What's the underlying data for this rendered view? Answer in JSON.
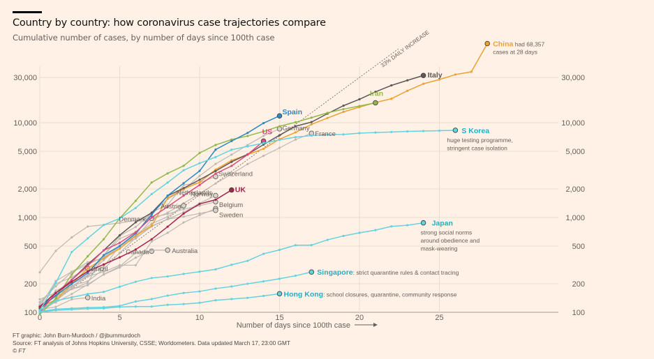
{
  "header": {
    "title": "Country by country: how coronavirus case trajectories compare",
    "subtitle": "Cumulative number of cases, by number of days since 100th case"
  },
  "footer": {
    "credit": "FT graphic: John Burn-Murdoch / @jburnmurdoch",
    "source": "Source: FT analysis of Johns Hopkins University, CSSE; Worldometers. Data updated March 17, 23:00 GMT",
    "copyright": "© FT"
  },
  "colors": {
    "background": "#fff1e5",
    "grid": "#e9ddd2",
    "axis_text": "#66605c",
    "china": "#eca133",
    "italy": "#5e5857",
    "iran": "#93b84a",
    "spain": "#2d88c4",
    "us": "#dc4a7f",
    "uk": "#a6244e",
    "asia_blue": "#62d3e0",
    "asia_label": "#1fb1c3",
    "gray": "#bdb8b4",
    "gray_label": "#66605c"
  },
  "chart_data": {
    "type": "line",
    "title": "Country by country: how coronavirus case trajectories compare",
    "subtitle": "Cumulative number of cases, by number of days since 100th case",
    "xlabel": "Number of days since 100th case",
    "ylabel": "",
    "yscale": "log",
    "xlim": [
      0,
      28
    ],
    "ylim": [
      100,
      70000
    ],
    "xticks": [
      0,
      5,
      10,
      15,
      20,
      25
    ],
    "xtick_labels": [
      "0",
      "5",
      "10",
      "15",
      "20",
      "25"
    ],
    "yticks": [
      100,
      200,
      500,
      1000,
      2000,
      5000,
      10000,
      30000
    ],
    "ytick_labels": [
      "100",
      "200",
      "500",
      "1,000",
      "2,000",
      "5,000",
      "10,000",
      "30,000"
    ],
    "grid": true,
    "reference_line": {
      "label": "33% DAILY INCREASE",
      "start": 100,
      "daily_growth": 0.33
    },
    "series": [
      {
        "name": "China",
        "label": "China",
        "note": "had 68,357 cases at 28 days",
        "color_key": "china",
        "highlight": true,
        "values": [
          114,
          135,
          200,
          290,
          370,
          470,
          640,
          820,
          1600,
          2000,
          2350,
          3200,
          4000,
          4600,
          5300,
          6700,
          7900,
          9600,
          11200,
          13000,
          14600,
          16300,
          17900,
          21700,
          25700,
          28500,
          32200,
          34400,
          68357
        ]
      },
      {
        "name": "Italy",
        "label": "Italy",
        "color_key": "italy",
        "highlight": true,
        "values": [
          110,
          150,
          220,
          320,
          450,
          650,
          890,
          1120,
          1690,
          2040,
          2500,
          3090,
          3860,
          4640,
          5880,
          7380,
          9170,
          10150,
          12460,
          15110,
          17660,
          21150,
          24740,
          27980,
          31500
        ]
      },
      {
        "name": "Iran",
        "label": "Iran",
        "color_key": "iran",
        "highlight": true,
        "values": [
          95,
          140,
          250,
          390,
          590,
          980,
          1500,
          2340,
          2920,
          3510,
          4790,
          5820,
          6630,
          7240,
          8080,
          9170,
          10100,
          11300,
          12700,
          13900,
          14990,
          16200
        ]
      },
      {
        "name": "Spain",
        "label": "Spain",
        "color_key": "spain",
        "highlight": true,
        "values": [
          114,
          150,
          200,
          260,
          400,
          500,
          680,
          1070,
          1700,
          2300,
          3100,
          5200,
          6400,
          7800,
          9900,
          11800
        ]
      },
      {
        "name": "US",
        "label": "US",
        "color_key": "us",
        "highlight": true,
        "values": [
          100,
          160,
          220,
          310,
          450,
          540,
          700,
          1000,
          1300,
          1700,
          2200,
          2900,
          3500,
          4600,
          6400
        ]
      },
      {
        "name": "UK",
        "label": "UK",
        "color_key": "uk",
        "highlight": true,
        "values": [
          115,
          160,
          210,
          270,
          320,
          380,
          460,
          590,
          800,
          1100,
          1390,
          1540,
          1950
        ]
      },
      {
        "name": "S Korea",
        "label": "S Korea",
        "note": "huge testing programme, stringent case isolation",
        "color_key": "asia_blue",
        "highlight": true,
        "values": [
          104,
          204,
          433,
          602,
          833,
          977,
          1261,
          1766,
          2337,
          3150,
          3736,
          4335,
          5186,
          5621,
          6088,
          6593,
          7041,
          7313,
          7478,
          7513,
          7755,
          7869,
          7979,
          8086,
          8162,
          8236,
          8320
        ]
      },
      {
        "name": "Japan",
        "label": "Japan",
        "note": "strong social norms around obedience and mask-wearing",
        "color_key": "asia_blue",
        "highlight": true,
        "values": [
          105,
          132,
          144,
          156,
          164,
          186,
          210,
          230,
          239,
          254,
          268,
          284,
          317,
          349,
          414,
          455,
          510,
          511,
          581,
          639,
          689,
          736,
          806,
          829,
          878
        ]
      },
      {
        "name": "Singapore",
        "label": "Singapore",
        "note": "strict quarantine rules & contact tracing",
        "color_key": "asia_blue",
        "highlight": true,
        "values": [
          102,
          108,
          110,
          112,
          113,
          117,
          130,
          138,
          150,
          160,
          166,
          178,
          187,
          200,
          212,
          226,
          243,
          266
        ]
      },
      {
        "name": "Hong Kong",
        "label": "Hong Kong",
        "note": "school closures, quarantine, community response",
        "color_key": "asia_blue",
        "highlight": true,
        "values": [
          100,
          105,
          107,
          109,
          110,
          114,
          115,
          115,
          120,
          122,
          126,
          134,
          138,
          142,
          149,
          157
        ]
      },
      {
        "name": "Germany",
        "label": "Germany",
        "color_key": "gray",
        "highlight": false,
        "values": [
          117,
          150,
          188,
          240,
          400,
          639,
          795,
          1112,
          1565,
          1966,
          2745,
          3675,
          4599,
          5813,
          7272,
          8604
        ]
      },
      {
        "name": "France",
        "label": "France",
        "color_key": "gray",
        "highlight": false,
        "values": [
          100,
          130,
          191,
          212,
          285,
          423,
          613,
          949,
          1126,
          1412,
          1784,
          2281,
          2876,
          3661,
          4469,
          5423,
          6633,
          7730
        ]
      },
      {
        "name": "Switzerland",
        "label": "Switzerland",
        "color_key": "gray",
        "highlight": false,
        "values": [
          114,
          214,
          268,
          337,
          374,
          491,
          652,
          1139,
          1359,
          2200,
          2330,
          2700
        ]
      },
      {
        "name": "Netherlands",
        "label": "Netherlands",
        "color_key": "gray",
        "highlight": false,
        "values": [
          128,
          188,
          265,
          321,
          382,
          503,
          603,
          804,
          959,
          1135,
          1413,
          1705
        ]
      },
      {
        "name": "Norway",
        "label": "Norway",
        "color_key": "gray",
        "highlight": false,
        "values": [
          113,
          147,
          176,
          205,
          400,
          598,
          702,
          996,
          1090,
          1221,
          1333,
          1463
        ]
      },
      {
        "name": "Austria",
        "label": "Austria",
        "color_key": "gray",
        "highlight": false,
        "values": [
          104,
          131,
          182,
          246,
          302,
          504,
          655,
          860,
          1018,
          1332
        ]
      },
      {
        "name": "Belgium",
        "label": "Belgium",
        "color_key": "gray",
        "highlight": false,
        "values": [
          109,
          169,
          200,
          239,
          267,
          314,
          314,
          559,
          689,
          886,
          1058,
          1243
        ]
      },
      {
        "name": "Sweden",
        "label": "Sweden",
        "color_key": "gray",
        "highlight": false,
        "values": [
          137,
          161,
          203,
          248,
          355,
          500,
          599,
          814,
          961,
          1022,
          1103,
          1190
        ]
      },
      {
        "name": "Denmark",
        "label": "Denmark",
        "color_key": "gray",
        "highlight": false,
        "values": [
          264,
          444,
          617,
          804,
          836,
          875,
          933,
          977
        ]
      },
      {
        "name": "Canada",
        "label": "Canada",
        "color_key": "gray",
        "highlight": false,
        "values": [
          103,
          138,
          176,
          193,
          252,
          304,
          424,
          441
        ]
      },
      {
        "name": "Australia",
        "label": "Australia",
        "color_key": "gray",
        "highlight": false,
        "values": [
          112,
          127,
          156,
          197,
          250,
          297,
          377,
          452,
          452
        ]
      },
      {
        "name": "Brazil",
        "label": "Brazil",
        "color_key": "gray",
        "highlight": false,
        "values": [
          121,
          200,
          234,
          291
        ]
      },
      {
        "name": "India",
        "label": "India",
        "color_key": "gray",
        "highlight": false,
        "values": [
          107,
          114,
          137,
          143
        ]
      }
    ]
  }
}
